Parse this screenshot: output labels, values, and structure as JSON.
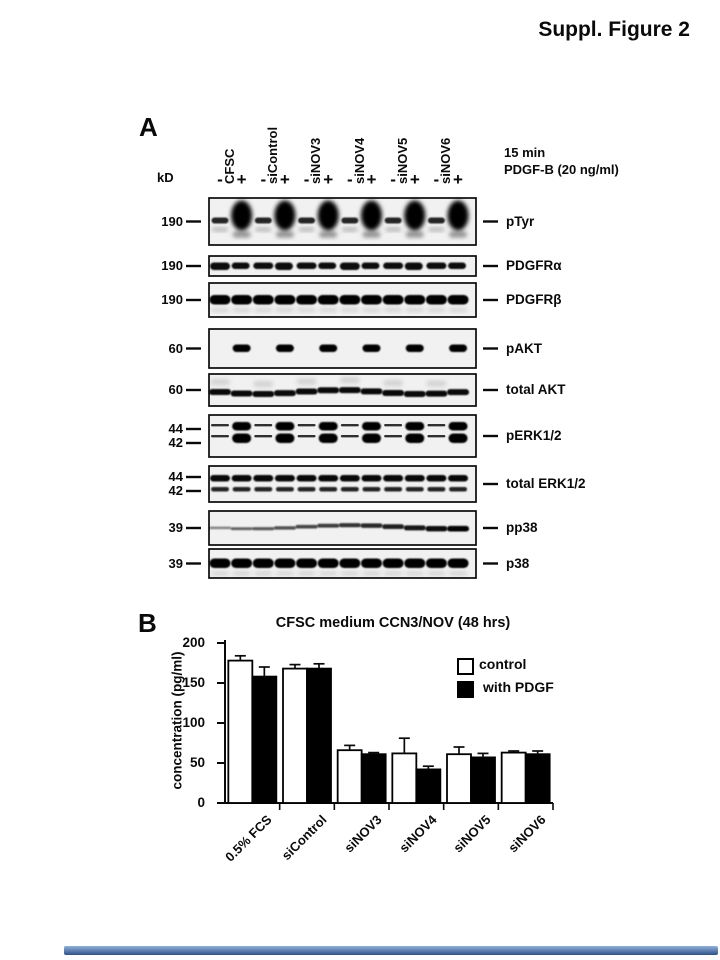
{
  "page_title": "Suppl. Figure 2",
  "panelA": {
    "label": "A",
    "kd_axis_label": "kD",
    "stimulus": {
      "line1": "15 min",
      "line2": "PDGF-B (20 ng/ml)"
    },
    "column_labels": [
      "CFSC",
      "siControl",
      "siNOV3",
      "siNOV4",
      "siNOV5",
      "siNOV6"
    ],
    "lane_signs": [
      "-",
      "+",
      "-",
      "+",
      "-",
      "+",
      "-",
      "+",
      "-",
      "+",
      "-",
      "+"
    ],
    "blots": [
      {
        "name": "pTyr",
        "kd1": "190",
        "kd2": "",
        "pattern": "ptyr"
      },
      {
        "name": "PDGFRα",
        "kd1": "190",
        "kd2": "",
        "pattern": "thin-uniform"
      },
      {
        "name": "PDGFRβ",
        "kd1": "190",
        "kd2": "",
        "pattern": "thick-uniform"
      },
      {
        "name": "pAKT",
        "kd1": "60",
        "kd2": "",
        "pattern": "plus-only"
      },
      {
        "name": "total AKT",
        "kd1": "60",
        "kd2": "",
        "pattern": "wavy-uniform"
      },
      {
        "name": "pERK1/2",
        "kd1": "44",
        "kd2": "42",
        "pattern": "doublet-plus"
      },
      {
        "name": "total ERK1/2",
        "kd1": "44",
        "kd2": "42",
        "pattern": "doublet-uniform"
      },
      {
        "name": "pp38",
        "kd1": "39",
        "kd2": "",
        "pattern": "thin-wavy"
      },
      {
        "name": "p38",
        "kd1": "39",
        "kd2": "",
        "pattern": "thick-uniform"
      }
    ]
  },
  "panelB": {
    "label": "B"
  },
  "chart_data": {
    "type": "bar",
    "title": "CFSC medium CCN3/NOV (48 hrs)",
    "ylabel": "concentration (pg/ml)",
    "xlabel": "",
    "ylim": [
      0,
      200
    ],
    "yticks": [
      0,
      50,
      100,
      150,
      200
    ],
    "grid": false,
    "legend_position": "upper right",
    "categories": [
      "0.5% FCS",
      "siControl",
      "siNOV3",
      "siNOV4",
      "siNOV5",
      "siNOV6"
    ],
    "series": [
      {
        "name": "control",
        "fill": "#ffffff",
        "values": [
          178,
          168,
          66,
          62,
          61,
          63
        ],
        "errors": [
          6,
          5,
          6,
          19,
          9,
          2
        ]
      },
      {
        "name": "with PDGF",
        "fill": "#000000",
        "values": [
          158,
          168,
          61,
          42,
          57,
          61
        ],
        "errors": [
          12,
          6,
          2,
          4,
          5,
          4
        ]
      }
    ]
  },
  "footer": {
    "gradient_top": "#8fb1dd",
    "gradient_bottom": "#2c528b"
  }
}
